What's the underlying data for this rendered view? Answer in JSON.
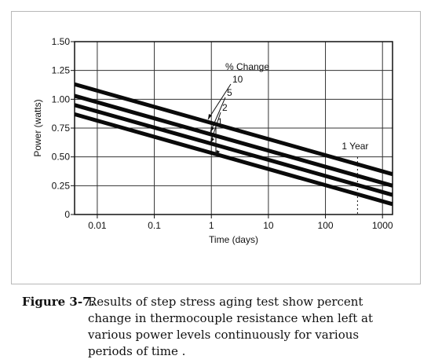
{
  "chart_data": {
    "type": "line",
    "xlabel": "Time (days)",
    "ylabel": "Power (watts)",
    "x_scale": "log",
    "xlim": [
      0.004,
      1500
    ],
    "ylim": [
      0,
      1.5
    ],
    "x_ticks": [
      0.01,
      0.1,
      1,
      10,
      100,
      1000
    ],
    "x_tick_labels": [
      "0.01",
      "0.1",
      "1",
      "10",
      "100",
      "1000"
    ],
    "y_ticks": [
      0,
      0.25,
      0.5,
      0.75,
      1.0,
      1.25,
      1.5
    ],
    "y_tick_labels": [
      "0",
      "0.25",
      "0.50",
      "0.75",
      "1.00",
      "1.25",
      "1.50"
    ],
    "grid": true,
    "series": [
      {
        "name": "10",
        "x": [
          0.004,
          1500
        ],
        "y": [
          1.13,
          0.35
        ]
      },
      {
        "name": "5",
        "x": [
          0.004,
          1500
        ],
        "y": [
          1.03,
          0.25
        ]
      },
      {
        "name": "2",
        "x": [
          0.004,
          1500
        ],
        "y": [
          0.95,
          0.17
        ]
      },
      {
        "name": "1",
        "x": [
          0.004,
          1500
        ],
        "y": [
          0.87,
          0.09
        ]
      }
    ],
    "legend_title": "% Change",
    "annotations": [
      {
        "text": "1 Year",
        "x": 365
      }
    ]
  },
  "caption": {
    "label": "Figure 3-7.",
    "lines": [
      "Results of step stress aging test show percent",
      "change in thermocouple resistance when left at",
      "various power levels continuously for various",
      "periods of time ."
    ]
  }
}
